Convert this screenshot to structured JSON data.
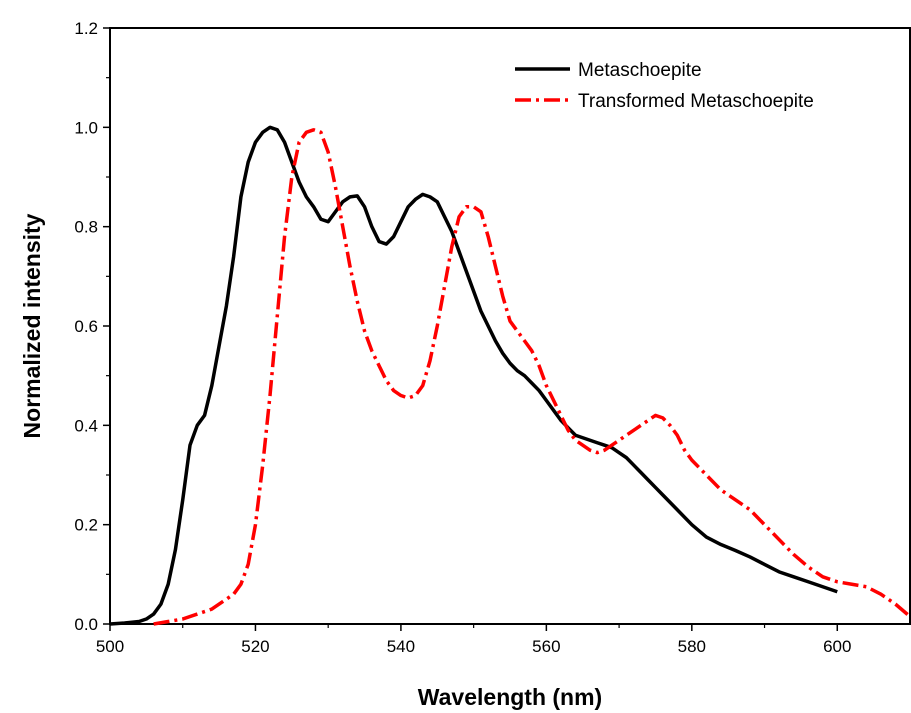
{
  "chart_data": {
    "type": "line",
    "xlabel": "Wavelength (nm)",
    "ylabel": "Normalized intensity",
    "xlim": [
      500,
      610
    ],
    "ylim": [
      0,
      1.2
    ],
    "x_ticks": [
      "500",
      "520",
      "540",
      "560",
      "580",
      "600"
    ],
    "y_ticks": [
      "0.0",
      "0.2",
      "0.4",
      "0.6",
      "0.8",
      "1.0",
      "1.2"
    ],
    "x_tick_values": [
      500,
      520,
      540,
      560,
      580,
      600
    ],
    "y_tick_values": [
      0,
      0.2,
      0.4,
      0.6,
      0.8,
      1.0,
      1.2
    ],
    "legend_position": "top-right",
    "series": [
      {
        "name": "Metaschoepite",
        "color": "#000000",
        "style": "solid",
        "x": [
          500,
          502,
          504,
          505,
          506,
          507,
          508,
          509,
          510,
          511,
          512,
          513,
          514,
          515,
          516,
          517,
          518,
          519,
          520,
          521,
          522,
          523,
          524,
          525,
          526,
          527,
          528,
          529,
          530,
          531,
          532,
          533,
          534,
          535,
          536,
          537,
          538,
          539,
          540,
          541,
          542,
          543,
          544,
          545,
          546,
          547,
          548,
          549,
          550,
          551,
          552,
          553,
          554,
          555,
          556,
          557,
          558,
          559,
          560,
          561,
          562,
          563,
          564,
          565,
          566,
          567,
          568,
          569,
          570,
          571,
          572,
          573,
          574,
          575,
          576,
          578,
          580,
          582,
          584,
          586,
          588,
          590,
          592,
          594,
          596,
          598,
          600
        ],
        "y": [
          0.0,
          0.002,
          0.005,
          0.01,
          0.02,
          0.04,
          0.08,
          0.15,
          0.25,
          0.36,
          0.4,
          0.42,
          0.48,
          0.56,
          0.64,
          0.74,
          0.86,
          0.93,
          0.97,
          0.99,
          1.0,
          0.995,
          0.97,
          0.93,
          0.89,
          0.86,
          0.84,
          0.815,
          0.81,
          0.83,
          0.85,
          0.86,
          0.862,
          0.84,
          0.8,
          0.77,
          0.765,
          0.78,
          0.81,
          0.84,
          0.855,
          0.865,
          0.86,
          0.85,
          0.82,
          0.79,
          0.75,
          0.71,
          0.67,
          0.63,
          0.6,
          0.57,
          0.545,
          0.525,
          0.51,
          0.5,
          0.485,
          0.47,
          0.45,
          0.43,
          0.41,
          0.395,
          0.38,
          0.375,
          0.37,
          0.365,
          0.36,
          0.355,
          0.345,
          0.335,
          0.32,
          0.305,
          0.29,
          0.275,
          0.26,
          0.23,
          0.2,
          0.175,
          0.16,
          0.148,
          0.135,
          0.12,
          0.105,
          0.095,
          0.085,
          0.075,
          0.065
        ]
      },
      {
        "name": "Transformed Metaschoepite",
        "color": "#ff0000",
        "style": "dashdot",
        "x": [
          506,
          508,
          510,
          512,
          514,
          516,
          517,
          518,
          519,
          520,
          521,
          522,
          523,
          524,
          525,
          526,
          527,
          528,
          529,
          530,
          531,
          532,
          533,
          534,
          535,
          536,
          537,
          538,
          539,
          540,
          541,
          542,
          543,
          544,
          545,
          546,
          547,
          548,
          549,
          550,
          551,
          552,
          553,
          554,
          555,
          556,
          557,
          558,
          559,
          560,
          561,
          562,
          563,
          564,
          565,
          566,
          567,
          568,
          569,
          570,
          571,
          572,
          573,
          574,
          575,
          576,
          577,
          578,
          579,
          580,
          582,
          584,
          586,
          588,
          590,
          592,
          594,
          596,
          598,
          600,
          602,
          604,
          606,
          608,
          610
        ],
        "y": [
          0.0,
          0.005,
          0.01,
          0.02,
          0.03,
          0.05,
          0.06,
          0.08,
          0.12,
          0.2,
          0.32,
          0.46,
          0.62,
          0.78,
          0.9,
          0.97,
          0.99,
          0.995,
          0.99,
          0.95,
          0.88,
          0.8,
          0.72,
          0.65,
          0.59,
          0.55,
          0.52,
          0.49,
          0.47,
          0.46,
          0.455,
          0.46,
          0.48,
          0.53,
          0.6,
          0.68,
          0.76,
          0.82,
          0.84,
          0.84,
          0.83,
          0.78,
          0.72,
          0.66,
          0.61,
          0.59,
          0.57,
          0.55,
          0.52,
          0.48,
          0.45,
          0.42,
          0.39,
          0.37,
          0.36,
          0.35,
          0.345,
          0.35,
          0.36,
          0.37,
          0.38,
          0.39,
          0.4,
          0.41,
          0.42,
          0.415,
          0.4,
          0.38,
          0.35,
          0.33,
          0.3,
          0.27,
          0.25,
          0.23,
          0.2,
          0.17,
          0.14,
          0.115,
          0.095,
          0.085,
          0.08,
          0.075,
          0.06,
          0.04,
          0.015
        ]
      }
    ]
  }
}
